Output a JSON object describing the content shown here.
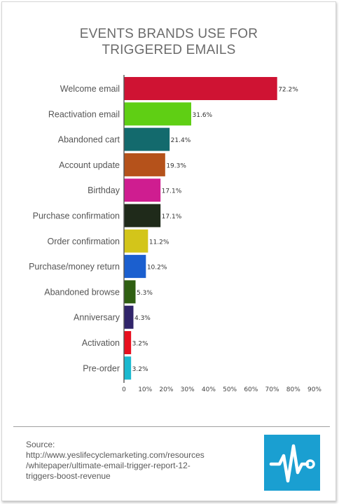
{
  "title_lines": [
    "EVENTS BRANDS USE FOR",
    "TRIGGERED EMAILS"
  ],
  "source": {
    "lines": [
      "Source:",
      "http://www.yeslifecyclemarketing.com/resources",
      "/whitepaper/ultimate-email-trigger-report-12-",
      "triggers-boost-revenue"
    ]
  },
  "logo": {
    "icon": "pulse-line-icon",
    "color": "#1a9fd1"
  },
  "chart_data": {
    "type": "bar",
    "orientation": "horizontal",
    "title": "EVENTS BRANDS USE FOR TRIGGERED EMAILS",
    "categories": [
      "Welcome email",
      "Reactivation email",
      "Abandoned cart",
      "Account update",
      "Birthday",
      "Purchase confirmation",
      "Order confirmation",
      "Purchase/money return",
      "Abandoned browse",
      "Anniversary",
      "Activation",
      "Pre-order"
    ],
    "values": [
      72.2,
      31.6,
      21.4,
      19.3,
      17.1,
      17.1,
      11.2,
      10.2,
      5.3,
      4.3,
      3.2,
      3.2
    ],
    "value_labels": [
      "72.2%",
      "31.6%",
      "21.4%",
      "19.3%",
      "17.1%",
      "17.1%",
      "11.2%",
      "10.2%",
      "5.3%",
      "4.3%",
      "3.2%",
      "3.2%"
    ],
    "colors": [
      "#cf1333",
      "#5fcf14",
      "#136a6d",
      "#b5521b",
      "#cf1d90",
      "#1f2a1a",
      "#d3c51a",
      "#1b5fcf",
      "#2f5f12",
      "#30246a",
      "#e8101f",
      "#1bb9cf"
    ],
    "xticks": [
      0,
      10,
      20,
      30,
      40,
      50,
      60,
      70,
      80,
      90
    ],
    "xtick_labels": [
      "0",
      "10%",
      "20%",
      "30%",
      "40%",
      "50%",
      "60%",
      "70%",
      "80%",
      "90%"
    ],
    "xlim": [
      0,
      90
    ],
    "xlabel": "",
    "ylabel": "",
    "grid": false,
    "legend": "none"
  }
}
